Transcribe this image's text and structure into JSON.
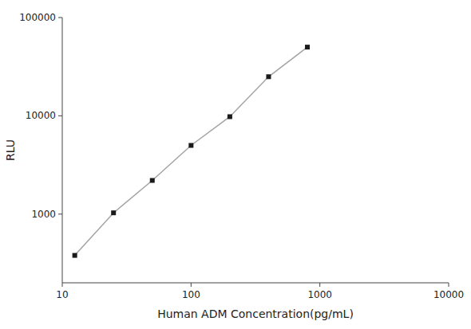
{
  "chart_data": {
    "type": "line",
    "x": [
      12.5,
      25,
      50,
      100,
      200,
      400,
      800
    ],
    "values": [
      380,
      1030,
      2200,
      5000,
      9800,
      25000,
      50000
    ],
    "xlabel": "Human ADM Concentration(pg/mL)",
    "ylabel": "RLU",
    "xlim": [
      10,
      10000
    ],
    "ylim": [
      200,
      100000
    ],
    "xticks": [
      10,
      100,
      1000,
      10000
    ],
    "yticks": [
      1000,
      10000,
      100000
    ],
    "log": true,
    "grid": false,
    "color": "#1a1a1a",
    "marker": "square",
    "line_style": "solid"
  }
}
